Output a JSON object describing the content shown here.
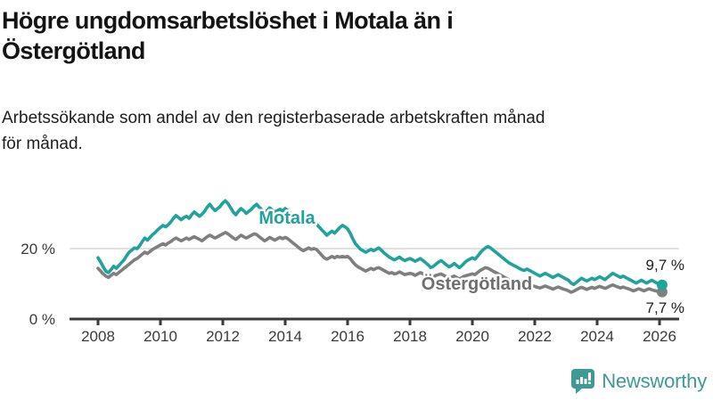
{
  "header": {
    "title": "Högre ungdomsarbetslöshet i Motala än i Östergötland",
    "title_lines": [
      "Högre ungdomsarbetslöshet i Motala än i",
      "Östergötland"
    ],
    "subtitle": "Arbetssökande som andel av den registerbaserade arbetskraften månad för månad.",
    "subtitle_lines": [
      "Arbetssökande som andel av den registerbaserade arbetskraften månad",
      "för månad."
    ]
  },
  "chart_data": {
    "type": "line",
    "title": "Högre ungdomsarbetslöshet i Motala än i Östergötland",
    "subtitle": "Arbetssökande som andel av den registerbaserade arbetskraften månad för månad.",
    "x_unit": "month",
    "x_start": "2008-01",
    "x_end": "2026-02",
    "x_ticks": [
      2008,
      2010,
      2012,
      2014,
      2016,
      2018,
      2020,
      2022,
      2024,
      2026
    ],
    "y_ticks": [
      {
        "value": 20,
        "label": "20 %"
      },
      {
        "value": 0,
        "label": "0 %"
      }
    ],
    "ylim": [
      0,
      36
    ],
    "grid": "horizontal line at 20% only, x-axis baseline at 0%",
    "legend_position": "inline labels on lines",
    "colors": {
      "axis": "#3a3a3a",
      "grid": "#d9d9d9",
      "value_label": "#1d1d1d"
    },
    "series": [
      {
        "name": "Motala",
        "color": "#21a29a",
        "label_color": "#21a29a",
        "end_value": 9.7,
        "end_label": "9,7 %",
        "values": [
          17.4,
          16.2,
          14.8,
          13.6,
          13.2,
          14.0,
          15.0,
          14.4,
          15.2,
          16.0,
          16.8,
          18.0,
          19.0,
          19.6,
          20.2,
          20.0,
          20.8,
          22.0,
          23.0,
          22.4,
          23.2,
          24.0,
          24.6,
          25.4,
          26.0,
          26.6,
          26.2,
          26.8,
          27.6,
          28.6,
          29.4,
          28.8,
          28.2,
          28.8,
          29.2,
          28.6,
          29.6,
          30.4,
          29.8,
          29.2,
          29.8,
          30.6,
          31.8,
          32.6,
          31.6,
          30.8,
          31.4,
          32.0,
          33.0,
          33.6,
          32.8,
          31.6,
          30.4,
          29.6,
          30.6,
          31.4,
          30.8,
          30.0,
          30.6,
          31.2,
          32.0,
          32.6,
          31.8,
          31.0,
          30.2,
          30.8,
          31.6,
          31.0,
          30.4,
          30.8,
          31.2,
          30.6,
          31.4,
          30.8,
          30.0,
          29.2,
          28.4,
          28.0,
          28.8,
          29.6,
          29.0,
          28.4,
          28.8,
          28.2,
          27.0,
          26.2,
          25.4,
          24.6,
          23.8,
          24.4,
          25.0,
          24.4,
          25.2,
          26.0,
          26.6,
          26.2,
          25.6,
          24.4,
          22.8,
          21.4,
          20.6,
          19.8,
          19.4,
          19.0,
          19.4,
          19.8,
          19.4,
          19.8,
          20.2,
          19.6,
          18.8,
          18.2,
          17.6,
          17.2,
          16.8,
          17.2,
          17.6,
          17.0,
          16.6,
          16.9,
          17.2,
          16.8,
          16.4,
          16.8,
          17.2,
          16.6,
          16.0,
          15.4,
          14.6,
          15.0,
          15.6,
          16.2,
          16.6,
          16.0,
          15.4,
          14.8,
          15.2,
          15.8,
          15.2,
          14.6,
          15.2,
          16.0,
          16.6,
          17.0,
          17.4,
          17.0,
          17.8,
          18.8,
          19.6,
          20.2,
          20.6,
          20.2,
          19.6,
          19.0,
          18.4,
          17.8,
          17.2,
          16.6,
          16.0,
          15.6,
          15.2,
          14.8,
          14.4,
          14.0,
          13.8,
          14.2,
          13.8,
          13.4,
          13.0,
          12.6,
          12.2,
          12.6,
          13.0,
          12.6,
          12.2,
          11.8,
          12.2,
          12.6,
          12.2,
          11.8,
          11.4,
          11.0,
          10.2,
          9.8,
          10.4,
          11.0,
          11.6,
          11.2,
          10.8,
          11.2,
          11.6,
          11.2,
          11.6,
          12.0,
          11.6,
          11.2,
          11.8,
          12.4,
          13.0,
          12.6,
          12.2,
          11.8,
          12.2,
          11.8,
          11.4,
          11.0,
          10.6,
          10.2,
          10.6,
          11.0,
          10.6,
          10.2,
          10.6,
          11.0,
          10.6,
          10.2,
          10.0,
          9.7
        ]
      },
      {
        "name": "Östergötland",
        "color": "#7f7f7f",
        "label_color": "#6f6f6f",
        "end_value": 7.7,
        "end_label": "7,7 %",
        "values": [
          14.4,
          13.6,
          12.8,
          12.2,
          11.8,
          12.4,
          13.0,
          12.6,
          13.2,
          13.8,
          14.4,
          15.0,
          15.6,
          16.2,
          16.8,
          17.2,
          17.8,
          18.4,
          19.0,
          18.6,
          19.2,
          19.8,
          20.2,
          20.6,
          21.0,
          21.4,
          21.0,
          21.6,
          22.0,
          22.6,
          23.0,
          22.6,
          22.2,
          22.6,
          23.0,
          22.6,
          23.0,
          23.4,
          23.0,
          22.6,
          22.2,
          22.8,
          23.4,
          23.8,
          23.4,
          23.0,
          23.4,
          23.8,
          24.2,
          24.6,
          24.2,
          23.6,
          23.0,
          22.6,
          23.2,
          23.8,
          23.4,
          23.0,
          23.4,
          23.8,
          24.2,
          24.0,
          23.4,
          22.8,
          22.2,
          22.6,
          23.2,
          22.8,
          22.4,
          22.8,
          23.2,
          22.8,
          23.2,
          22.8,
          22.2,
          21.6,
          21.0,
          20.4,
          19.8,
          19.4,
          19.8,
          20.2,
          19.8,
          20.0,
          19.8,
          19.0,
          18.2,
          17.4,
          17.0,
          17.4,
          17.8,
          17.4,
          17.8,
          17.6,
          17.8,
          17.6,
          17.8,
          17.2,
          16.2,
          15.4,
          14.8,
          14.4,
          14.0,
          13.6,
          14.0,
          14.4,
          14.0,
          14.4,
          14.6,
          14.2,
          13.8,
          13.4,
          13.0,
          13.2,
          12.8,
          13.0,
          13.4,
          13.0,
          12.6,
          12.8,
          13.0,
          12.8,
          12.4,
          12.8,
          13.2,
          12.8,
          12.4,
          12.0,
          11.6,
          12.0,
          12.4,
          12.6,
          12.8,
          12.4,
          12.0,
          11.6,
          11.9,
          12.2,
          11.8,
          11.4,
          11.8,
          12.2,
          12.4,
          12.6,
          12.8,
          12.6,
          13.2,
          13.8,
          14.2,
          14.6,
          14.4,
          14.0,
          13.6,
          13.2,
          12.8,
          12.4,
          12.0,
          11.6,
          11.2,
          10.9,
          10.6,
          10.3,
          10.0,
          9.8,
          9.6,
          9.9,
          9.7,
          9.5,
          9.3,
          9.0,
          8.8,
          9.1,
          9.4,
          9.1,
          8.8,
          8.5,
          8.8,
          9.1,
          8.8,
          8.5,
          8.3,
          8.0,
          7.6,
          7.9,
          8.3,
          8.7,
          9.0,
          8.7,
          8.4,
          8.7,
          9.0,
          8.7,
          9.0,
          9.3,
          9.0,
          8.7,
          9.0,
          9.4,
          9.7,
          9.4,
          9.1,
          8.8,
          9.1,
          8.8,
          8.6,
          8.3,
          8.0,
          8.3,
          8.6,
          8.3,
          8.0,
          8.3,
          8.6,
          8.3,
          8.1,
          7.9,
          7.8,
          7.7
        ]
      }
    ]
  },
  "branding": {
    "name": "Newsworthy",
    "icon": "newsworthy-chart-bubble-logo",
    "color": "#3d9a94"
  }
}
